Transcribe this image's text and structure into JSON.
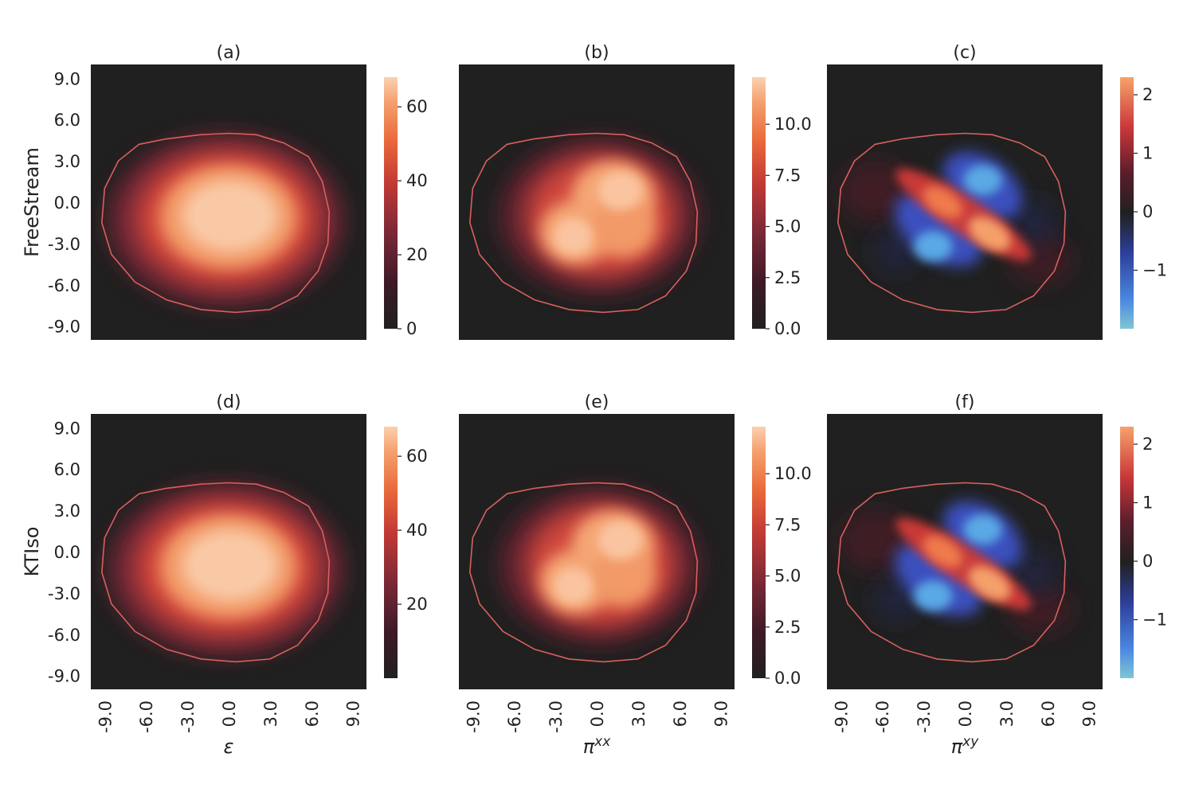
{
  "chart_data": {
    "type": "heatmap",
    "rows": [
      {
        "ylabel": "FreeStream"
      },
      {
        "ylabel": "KTIso"
      }
    ],
    "panels": [
      {
        "title": "(a)",
        "row": 0,
        "col": 0,
        "field": "energy_density",
        "cbar_ticks": [
          "0",
          "20",
          "40",
          "60"
        ],
        "cbar_range": [
          0,
          68
        ],
        "cbar_tick_values": [
          0,
          20,
          40,
          60
        ],
        "colormap": "warm",
        "vmax": 66
      },
      {
        "title": "(b)",
        "row": 0,
        "col": 1,
        "field": "pi_xx",
        "cbar_ticks": [
          "0.0",
          "2.5",
          "5.0",
          "7.5",
          "10.0"
        ],
        "cbar_range": [
          0,
          12.3
        ],
        "cbar_tick_values": [
          0,
          2.5,
          5,
          7.5,
          10
        ],
        "colormap": "warm",
        "vmax": 11.6
      },
      {
        "title": "(c)",
        "row": 0,
        "col": 2,
        "field": "pi_xy",
        "cbar_ticks": [
          "−1",
          "0",
          "1",
          "2"
        ],
        "cbar_range": [
          -2.0,
          2.3
        ],
        "cbar_tick_values": [
          -1,
          0,
          1,
          2
        ],
        "colormap": "diverging",
        "vmax": 2.2
      },
      {
        "title": "(d)",
        "row": 1,
        "col": 0,
        "field": "energy_density",
        "cbar_ticks": [
          "20",
          "40",
          "60"
        ],
        "cbar_range": [
          0,
          68
        ],
        "cbar_tick_values": [
          20,
          40,
          60
        ],
        "colormap": "warm",
        "vmax": 66
      },
      {
        "title": "(e)",
        "row": 1,
        "col": 1,
        "field": "pi_xx",
        "cbar_ticks": [
          "0.0",
          "2.5",
          "5.0",
          "7.5",
          "10.0"
        ],
        "cbar_range": [
          0,
          12.3
        ],
        "cbar_tick_values": [
          0,
          2.5,
          5,
          7.5,
          10
        ],
        "colormap": "warm",
        "vmax": 11.6
      },
      {
        "title": "(f)",
        "row": 1,
        "col": 2,
        "field": "pi_xy",
        "cbar_ticks": [
          "−1",
          "0",
          "1",
          "2"
        ],
        "cbar_range": [
          -2.0,
          2.3
        ],
        "cbar_tick_values": [
          -1,
          0,
          1,
          2
        ],
        "colormap": "diverging",
        "vmax": 2.2
      }
    ],
    "axis_ticks": [
      "-9.0",
      "-6.0",
      "-3.0",
      "0.0",
      "3.0",
      "6.0",
      "9.0"
    ],
    "axis_tick_values": [
      -9,
      -6,
      -3,
      0,
      3,
      6,
      9
    ],
    "axis_range": [
      -10,
      10
    ],
    "column_xlabels": [
      "ε",
      "π",
      "π"
    ],
    "column_xlabel_superscripts": [
      "",
      "xx",
      "xy"
    ],
    "contour_color": "#d9605c",
    "background_color": "#202020"
  }
}
